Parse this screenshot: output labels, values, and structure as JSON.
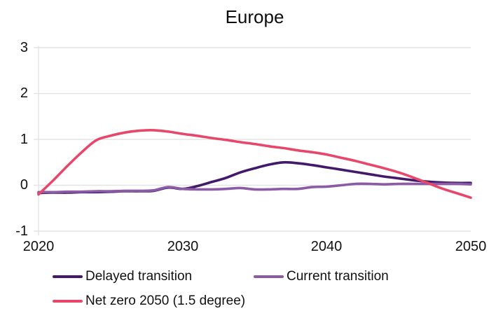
{
  "title": "Europe",
  "colors": {
    "delayed": "#431a6b",
    "current": "#8b5ba6",
    "net_zero": "#e8476c",
    "grid": "#e4e4e4",
    "text": "#111111"
  },
  "chart_data": {
    "type": "line",
    "title": "Europe",
    "xlabel": "",
    "ylabel": "",
    "xlim": [
      2020,
      2050
    ],
    "ylim": [
      -1,
      3
    ],
    "xticks": [
      2020,
      2030,
      2040,
      2050
    ],
    "yticks": [
      3,
      2,
      1,
      0,
      -1
    ],
    "grid": "horizontal",
    "legend_position": "bottom",
    "x": [
      2020,
      2021,
      2022,
      2023,
      2024,
      2025,
      2026,
      2027,
      2028,
      2029,
      2030,
      2031,
      2032,
      2033,
      2034,
      2035,
      2036,
      2037,
      2038,
      2039,
      2040,
      2041,
      2042,
      2043,
      2044,
      2045,
      2046,
      2047,
      2048,
      2049,
      2050
    ],
    "series": [
      {
        "name": "Delayed transition",
        "color": "#431a6b",
        "values": [
          -0.17,
          -0.16,
          -0.16,
          -0.15,
          -0.15,
          -0.14,
          -0.13,
          -0.13,
          -0.12,
          -0.05,
          -0.08,
          -0.02,
          0.07,
          0.16,
          0.28,
          0.37,
          0.45,
          0.5,
          0.48,
          0.44,
          0.39,
          0.34,
          0.29,
          0.24,
          0.19,
          0.15,
          0.11,
          0.08,
          0.06,
          0.05,
          0.05
        ]
      },
      {
        "name": "Current transition",
        "color": "#8b5ba6",
        "values": [
          -0.15,
          -0.15,
          -0.14,
          -0.14,
          -0.13,
          -0.13,
          -0.12,
          -0.12,
          -0.11,
          -0.04,
          -0.08,
          -0.09,
          -0.09,
          -0.08,
          -0.06,
          -0.09,
          -0.09,
          -0.08,
          -0.08,
          -0.04,
          -0.03,
          0.0,
          0.03,
          0.03,
          0.02,
          0.03,
          0.03,
          0.03,
          0.03,
          0.03,
          0.02
        ]
      },
      {
        "name": "Net zero 2050 (1.5 degree)",
        "color": "#e8476c",
        "values": [
          -0.2,
          0.1,
          0.42,
          0.72,
          0.98,
          1.08,
          1.15,
          1.19,
          1.2,
          1.17,
          1.12,
          1.08,
          1.03,
          0.99,
          0.94,
          0.9,
          0.85,
          0.81,
          0.76,
          0.72,
          0.67,
          0.6,
          0.53,
          0.45,
          0.37,
          0.28,
          0.17,
          0.05,
          -0.07,
          -0.17,
          -0.27
        ]
      }
    ]
  }
}
